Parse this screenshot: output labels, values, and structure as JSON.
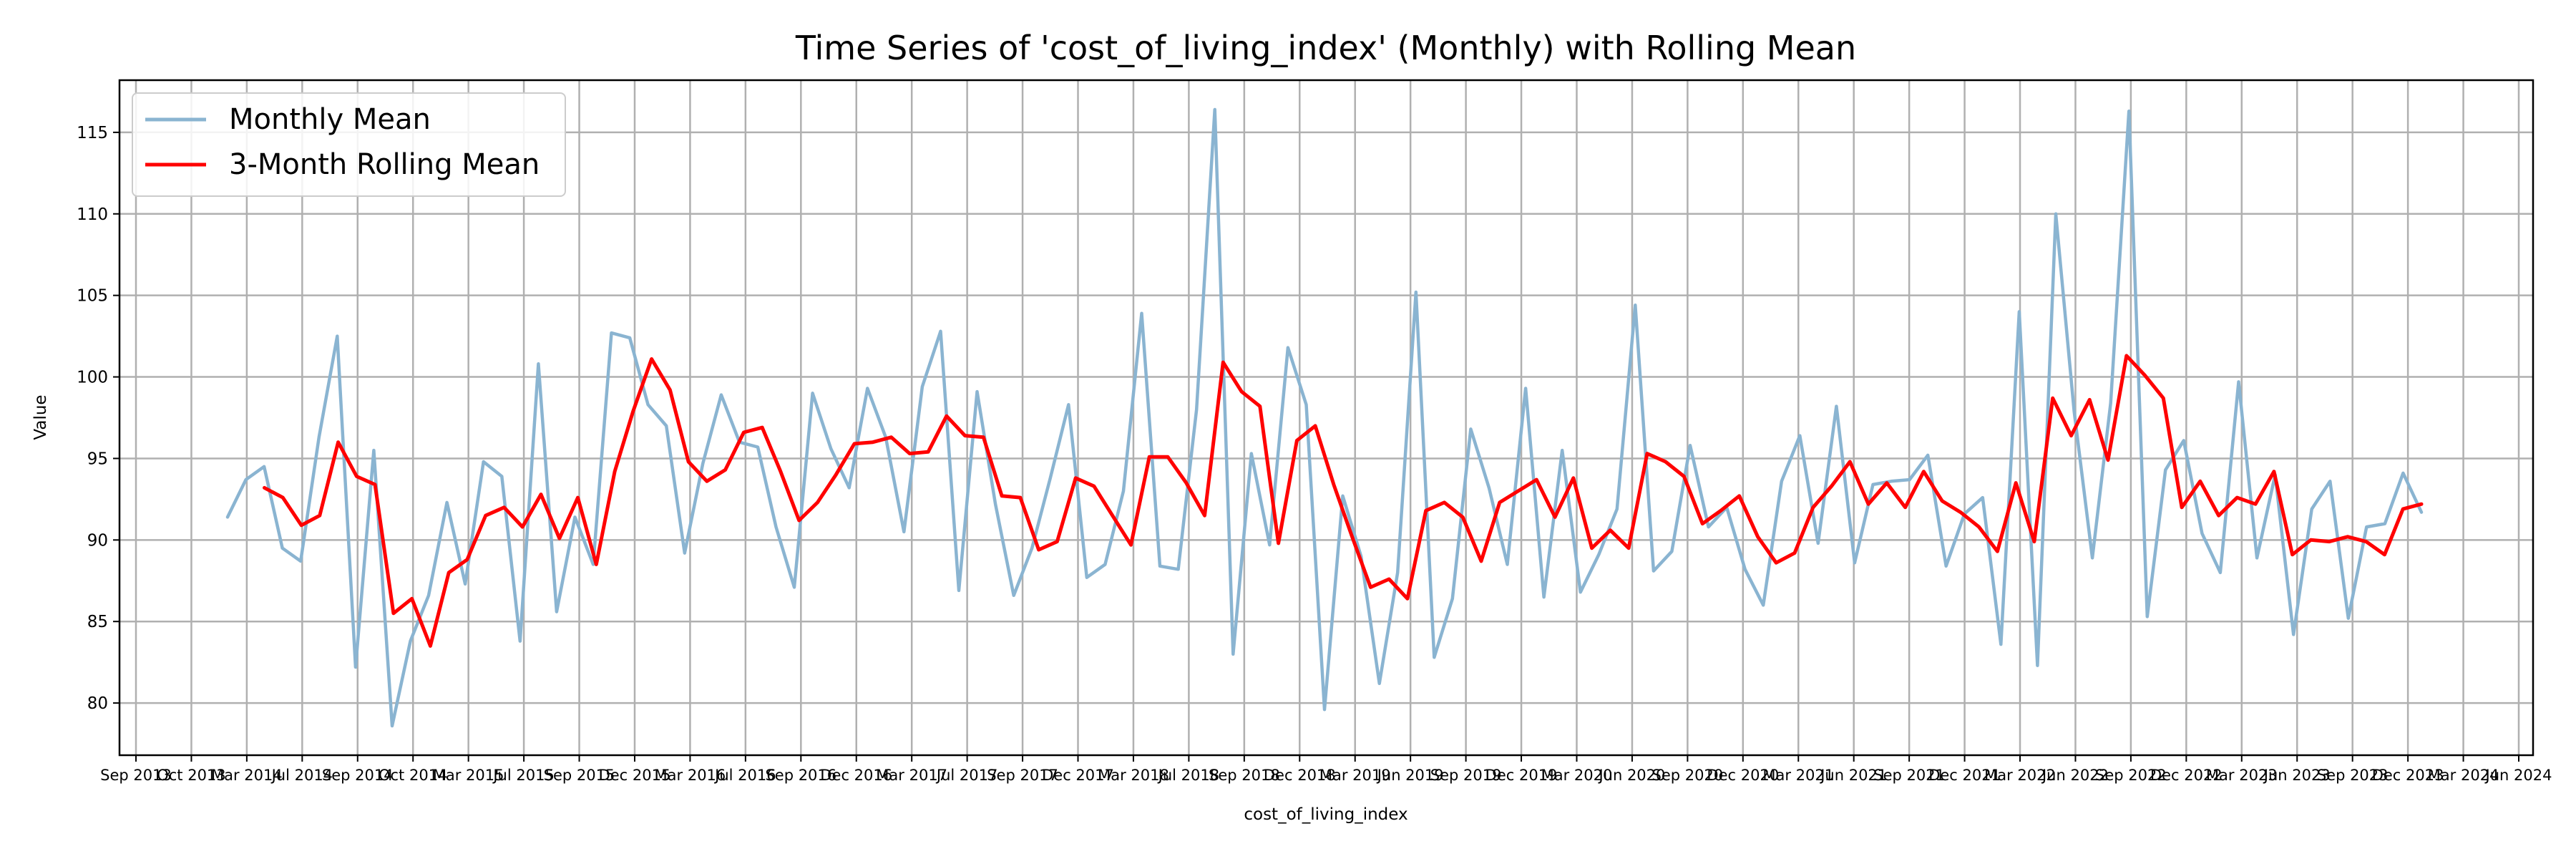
{
  "chart_data": {
    "type": "line",
    "title": "Time Series of 'cost_of_living_index' (Monthly) with Rolling Mean",
    "xlabel": "cost_of_living_index",
    "ylabel": "Value",
    "x_tick_labels": [
      "Sep 2013",
      "Oct 2013",
      "Mar 2014",
      "Jul 2014",
      "Sep 2014",
      "Oct 2014",
      "Mar 2015",
      "Jul 2015",
      "Sep 2015",
      "Dec 2015",
      "Mar 2016",
      "Jul 2016",
      "Sep 2016",
      "Dec 2016",
      "Mar 2017",
      "Jul 2017",
      "Sep 2017",
      "Dec 2017",
      "Mar 2018",
      "Jul 2018",
      "Sep 2018",
      "Dec 2018",
      "Mar 2019",
      "Jun 2019",
      "Sep 2019",
      "Dec 2019",
      "Mar 2020",
      "Jun 2020",
      "Sep 2020",
      "Dec 2020",
      "Mar 2021",
      "Jun 2021",
      "Sep 2021",
      "Dec 2021",
      "Mar 2022",
      "Jun 2022",
      "Sep 2022",
      "Dec 2022",
      "Mar 2023",
      "Jun 2023",
      "Sep 2023",
      "Dec 2023",
      "Mar 2024",
      "Jun 2024"
    ],
    "y_ticks": [
      80,
      85,
      90,
      95,
      100,
      105,
      110,
      115
    ],
    "ylim": [
      76.8,
      118.2
    ],
    "grid": true,
    "legend_position": "top-left",
    "colors": {
      "monthly": "#8ab4d1",
      "rolling": "#ff0000",
      "grid": "#b0b0b0"
    },
    "series": [
      {
        "name": "Monthly Mean",
        "values": [
          91.4,
          93.7,
          94.5,
          89.5,
          88.7,
          96.3,
          102.5,
          82.2,
          95.5,
          78.6,
          83.8,
          86.6,
          92.3,
          87.3,
          94.8,
          93.9,
          83.8,
          100.8,
          85.6,
          91.4,
          88.5,
          102.7,
          102.4,
          98.3,
          97.0,
          89.2,
          94.7,
          98.9,
          96.0,
          95.7,
          90.8,
          87.1,
          99.0,
          95.6,
          93.2,
          99.3,
          96.3,
          90.5,
          99.4,
          102.8,
          86.9,
          99.1,
          92.2,
          86.6,
          89.5,
          93.8,
          98.3,
          87.7,
          88.5,
          93.0,
          103.9,
          88.4,
          88.2,
          98.0,
          116.4,
          83.0,
          95.3,
          89.7,
          101.8,
          98.3,
          79.6,
          92.7,
          89.0,
          81.2,
          88.0,
          105.2,
          82.8,
          86.4,
          96.8,
          93.2,
          88.5,
          99.3,
          86.5,
          95.5,
          86.8,
          89.1,
          91.9,
          104.4,
          88.1,
          89.3,
          95.8,
          90.8,
          92.0,
          88.2,
          86.0,
          93.6,
          96.4,
          89.8,
          98.2,
          88.6,
          93.4,
          93.6,
          93.7,
          95.2,
          88.4,
          91.6,
          92.6,
          83.6,
          104.0,
          82.3,
          110.0,
          97.9,
          88.9,
          98.4,
          116.3,
          85.3,
          94.3,
          96.1,
          90.4,
          88.0,
          99.7,
          88.9,
          94.0,
          84.2,
          91.9,
          93.6,
          85.2,
          90.8,
          91.0,
          94.1,
          91.7
        ]
      },
      {
        "name": "3-Month Rolling Mean",
        "values": [
          null,
          null,
          93.2,
          92.6,
          90.9,
          91.5,
          96.0,
          93.9,
          93.4,
          85.5,
          86.4,
          83.5,
          88.0,
          88.8,
          91.5,
          92.0,
          90.8,
          92.8,
          90.1,
          92.6,
          88.5,
          94.2,
          97.9,
          101.1,
          99.2,
          94.8,
          93.6,
          94.3,
          96.6,
          96.9,
          94.2,
          91.2,
          92.3,
          94.0,
          95.9,
          96.0,
          96.3,
          95.3,
          95.4,
          97.6,
          96.4,
          96.3,
          92.7,
          92.6,
          89.4,
          89.9,
          93.8,
          93.3,
          91.5,
          89.7,
          95.1,
          95.1,
          93.5,
          91.5,
          100.9,
          99.1,
          98.2,
          89.8,
          96.1,
          97.0,
          93.4,
          90.2,
          87.1,
          87.6,
          86.4,
          91.8,
          92.3,
          91.4,
          88.7,
          92.3,
          93.0,
          93.7,
          91.4,
          93.8,
          89.5,
          90.6,
          89.5,
          95.3,
          94.8,
          93.9,
          91.0,
          91.8,
          92.7,
          90.2,
          88.6,
          89.2,
          92.0,
          93.3,
          94.8,
          92.2,
          93.5,
          92.0,
          94.2,
          92.4,
          91.7,
          90.8,
          89.3,
          93.5,
          89.9,
          98.7,
          96.4,
          98.6,
          94.9,
          101.3,
          100.1,
          98.7,
          92.0,
          93.6,
          91.5,
          92.6,
          92.2,
          94.2,
          89.1,
          90.0,
          89.9,
          90.2,
          89.9,
          89.1,
          91.9,
          92.2
        ]
      }
    ]
  }
}
